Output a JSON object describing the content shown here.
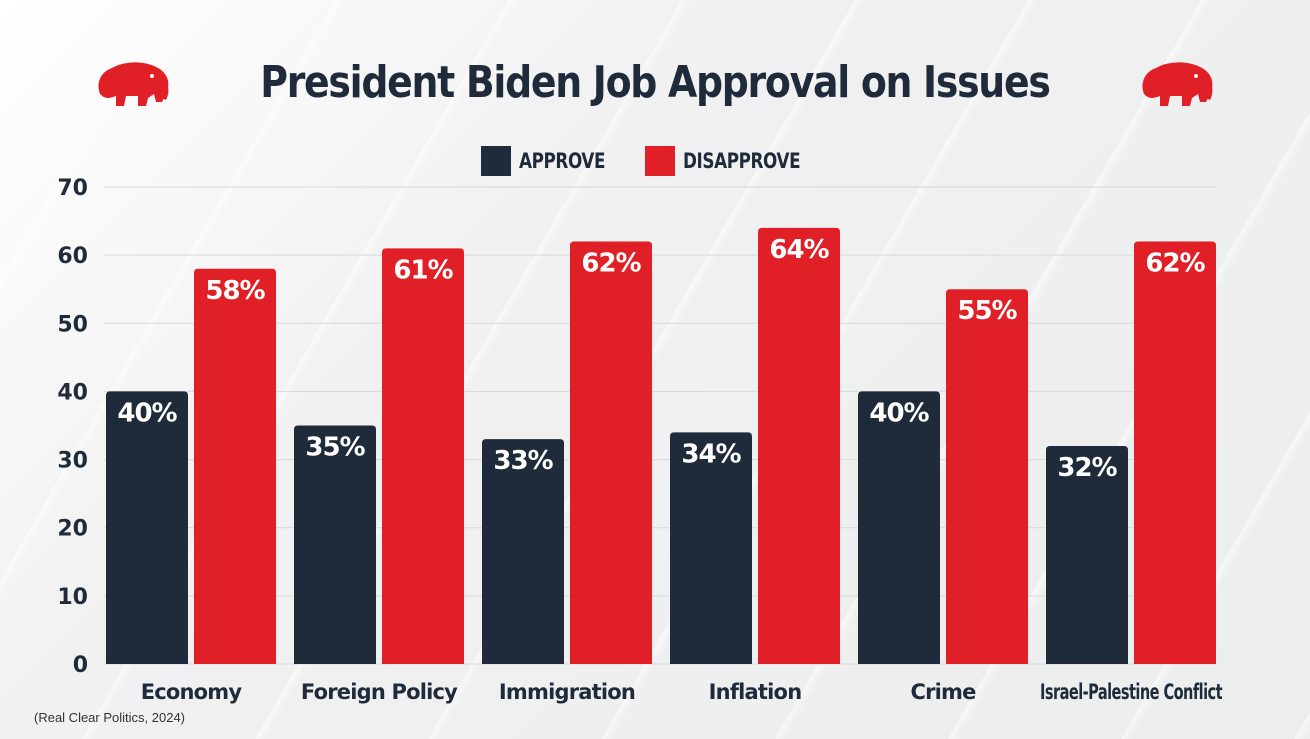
{
  "title": "President Biden Job Approval on Issues",
  "source": "(Real Clear Politics, 2024)",
  "colors": {
    "approve": "#1f2b3b",
    "disapprove": "#e01f26",
    "text": "#1f2b3b"
  },
  "icons": {
    "left": "elephant-icon",
    "right": "elephant-icon"
  },
  "chart_data": {
    "type": "bar",
    "title": "President Biden Job Approval on Issues",
    "xlabel": "",
    "ylabel": "",
    "ylim": [
      0,
      70
    ],
    "yticks": [
      0,
      10,
      20,
      30,
      40,
      50,
      60,
      70
    ],
    "grid": true,
    "legend_position": "top-center",
    "categories": [
      "Economy",
      "Foreign Policy",
      "Immigration",
      "Inflation",
      "Crime",
      "Israel-Palestine Conflict"
    ],
    "series": [
      {
        "name": "APPROVE",
        "values": [
          40,
          35,
          33,
          34,
          40,
          32
        ],
        "labels": [
          "40%",
          "35%",
          "33%",
          "34%",
          "40%",
          "32%"
        ]
      },
      {
        "name": "DISAPPROVE",
        "values": [
          58,
          61,
          62,
          64,
          55,
          62
        ],
        "labels": [
          "58%",
          "61%",
          "62%",
          "64%",
          "55%",
          "62%"
        ]
      }
    ]
  }
}
